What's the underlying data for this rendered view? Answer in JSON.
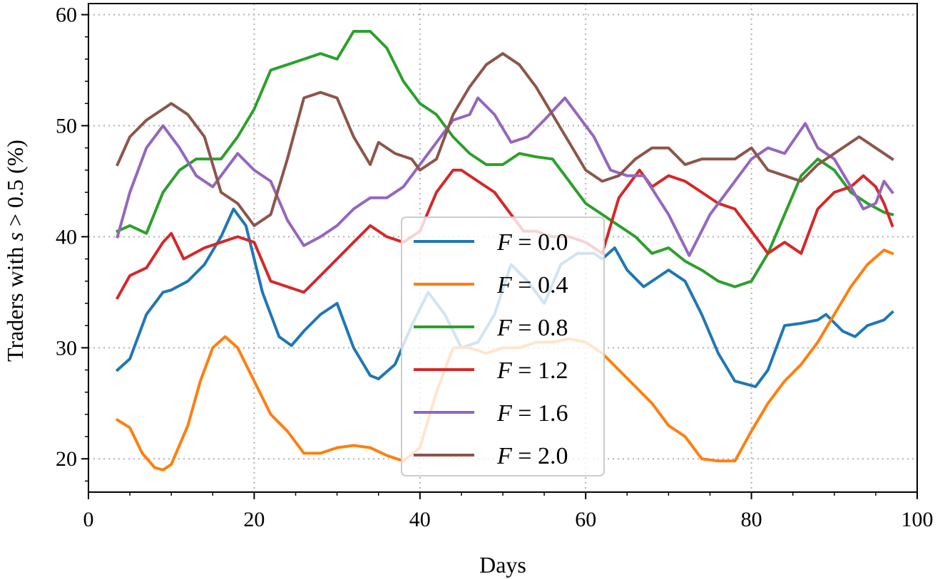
{
  "chart_data": {
    "type": "line",
    "xlabel": "Days",
    "ylabel": "Traders with s > 0.5 (%)",
    "ylabel_parts": {
      "prefix": "Traders with ",
      "var": "s",
      "suffix": " > 0.5 (%)"
    },
    "xlim": [
      0,
      100
    ],
    "ylim": [
      17,
      61
    ],
    "xticks": [
      0,
      20,
      40,
      60,
      80,
      100
    ],
    "yticks": [
      20,
      30,
      40,
      50,
      60
    ],
    "xtick_labels": [
      "0",
      "20",
      "40",
      "60",
      "80",
      "100"
    ],
    "ytick_labels": [
      "20",
      "30",
      "40",
      "50",
      "60"
    ],
    "grid": true,
    "legend_position": "center",
    "series": [
      {
        "name": "F = 0.0",
        "name_var": "F",
        "name_value": "= 0.0",
        "color": "#1f77b4",
        "x": [
          3.5,
          5,
          7,
          9,
          10,
          12,
          14,
          16,
          17.5,
          19,
          21,
          23,
          24.5,
          26,
          28,
          30,
          32,
          34,
          35,
          37,
          39,
          41,
          43,
          45,
          47,
          49,
          51,
          53,
          55,
          57,
          59,
          61,
          62,
          63.5,
          65,
          67,
          70,
          72,
          74,
          76,
          78,
          79,
          80.5,
          82,
          84,
          86,
          88,
          89,
          91,
          92.5,
          94,
          96,
          97
        ],
        "y": [
          28,
          29,
          33,
          35,
          35.2,
          36,
          37.5,
          40,
          42.5,
          41,
          35,
          31,
          30.2,
          31.5,
          33,
          34,
          30,
          27.5,
          27.2,
          28.5,
          32,
          35,
          33,
          30,
          30.5,
          33,
          37.5,
          36,
          34,
          37.5,
          38.5,
          38.5,
          38,
          39,
          37,
          35.5,
          37,
          36,
          33,
          29.5,
          27,
          26.8,
          26.5,
          28,
          32,
          32.2,
          32.5,
          33,
          31.5,
          31,
          32,
          32.5,
          33.2
        ]
      },
      {
        "name": "F = 0.4",
        "name_var": "F",
        "name_value": "= 0.4",
        "color": "#ff7f0e",
        "x": [
          3.5,
          5,
          6.5,
          8,
          9,
          10,
          12,
          13.5,
          15,
          16.5,
          18,
          20,
          22,
          24,
          26,
          28,
          30,
          32,
          34,
          36,
          38,
          40,
          42,
          44,
          46,
          48,
          50,
          52,
          54,
          56,
          58,
          60,
          62,
          64,
          66,
          68,
          70,
          72,
          74,
          76,
          78,
          80,
          82,
          84,
          86,
          88,
          90,
          92,
          94,
          96,
          97
        ],
        "y": [
          23.5,
          22.8,
          20.5,
          19.2,
          19,
          19.5,
          23,
          27,
          30,
          31,
          30,
          27,
          24,
          22.5,
          20.5,
          20.5,
          21,
          21.2,
          21,
          20.3,
          19.8,
          21,
          26,
          30,
          30,
          29.5,
          30,
          30,
          30.5,
          30.5,
          30.8,
          30.5,
          29.5,
          28,
          26.5,
          25,
          23,
          22,
          20,
          19.8,
          19.8,
          22.5,
          25,
          27,
          28.5,
          30.5,
          33,
          35.5,
          37.5,
          38.8,
          38.5
        ]
      },
      {
        "name": "F = 0.8",
        "name_var": "F",
        "name_value": "= 0.8",
        "color": "#2ca02c",
        "x": [
          3.5,
          5,
          7,
          9,
          11,
          13,
          16,
          18,
          20,
          22,
          24,
          26,
          28,
          30,
          32,
          34,
          36,
          38,
          40,
          42,
          44,
          46,
          48,
          50,
          52,
          54,
          56,
          58,
          60,
          62,
          64,
          66,
          68,
          70,
          72,
          74,
          76,
          78,
          80,
          82,
          84,
          86,
          88,
          90,
          92,
          94,
          96,
          97
        ],
        "y": [
          40.5,
          41,
          40.3,
          44,
          46,
          47,
          47,
          49,
          51.5,
          55,
          55.5,
          56,
          56.5,
          56,
          58.5,
          58.5,
          57,
          54,
          52,
          51,
          49,
          47.5,
          46.5,
          46.5,
          47.5,
          47.2,
          47,
          45,
          43,
          42,
          41,
          40,
          38.5,
          39,
          37.8,
          37,
          36,
          35.5,
          36,
          38.5,
          42,
          45.5,
          47,
          46,
          44,
          43,
          42.2,
          42
        ]
      },
      {
        "name": "F = 1.2",
        "name_var": "F",
        "name_value": "= 1.2",
        "color": "#d62728",
        "x": [
          3.5,
          5,
          7,
          9,
          10,
          11.5,
          14,
          16,
          18,
          20,
          22,
          24,
          26,
          28,
          30,
          32,
          34,
          36,
          38,
          40,
          42,
          44,
          45,
          47,
          49,
          51,
          52.5,
          54,
          56,
          58,
          60,
          62,
          64,
          66.5,
          68,
          70,
          72,
          74,
          76,
          78,
          80,
          82,
          84,
          86,
          88,
          90,
          92,
          93.5,
          95,
          96,
          97
        ],
        "y": [
          34.5,
          36.5,
          37.2,
          39.5,
          40.3,
          38,
          39,
          39.5,
          40,
          39.5,
          36,
          35.5,
          35,
          36.5,
          38,
          39.5,
          41,
          40,
          39.5,
          40.5,
          44,
          46,
          46,
          45,
          44,
          42,
          40.5,
          40.5,
          40,
          40,
          39.5,
          38.5,
          43.5,
          46,
          44.5,
          45.5,
          45,
          44,
          43,
          42.5,
          40.5,
          38.5,
          39.5,
          38.5,
          42.5,
          44,
          44.5,
          45.5,
          44.5,
          43,
          41
        ]
      },
      {
        "name": "F = 1.6",
        "name_var": "F",
        "name_value": "= 1.6",
        "color": "#9467bd",
        "x": [
          3.5,
          5,
          7,
          9,
          11,
          13,
          15,
          18,
          20,
          22,
          24,
          26,
          28,
          30,
          32,
          34,
          36,
          38,
          40,
          42,
          44,
          46,
          47,
          49,
          51,
          53,
          55,
          57.5,
          59,
          61,
          63,
          65,
          67,
          70,
          72.5,
          75,
          78,
          80,
          82,
          84,
          86.5,
          88,
          90,
          92,
          93.5,
          95,
          96,
          97
        ],
        "y": [
          40,
          44,
          48,
          50,
          48,
          45.5,
          44.5,
          47.5,
          46,
          45,
          41.5,
          39.2,
          40,
          41,
          42.5,
          43.5,
          43.5,
          44.5,
          46.5,
          48.5,
          50.5,
          51,
          52.5,
          51,
          48.5,
          49,
          50.5,
          52.5,
          51,
          49,
          46,
          45.5,
          45.5,
          42,
          38.3,
          42,
          45,
          47,
          48,
          47.5,
          50.2,
          48,
          47,
          44.5,
          42.5,
          43,
          45,
          44
        ]
      },
      {
        "name": "F = 2.0",
        "name_var": "F",
        "name_value": "= 2.0",
        "color": "#8c564b",
        "x": [
          3.5,
          5,
          7,
          9,
          10,
          12,
          14,
          16,
          18,
          20,
          22,
          24,
          26,
          28,
          30,
          32,
          34,
          35,
          37,
          39,
          40,
          42,
          44,
          46,
          48,
          50,
          52,
          54,
          56,
          58,
          60,
          62,
          64,
          66,
          68,
          70,
          72,
          74,
          76,
          78,
          80,
          82,
          84,
          86,
          88,
          90,
          92,
          93,
          95,
          97
        ],
        "y": [
          46.5,
          49,
          50.5,
          51.5,
          52,
          51,
          49,
          44,
          43,
          41,
          42,
          47,
          52.5,
          53,
          52.5,
          49,
          46.5,
          48.5,
          47.5,
          47,
          46,
          47,
          51,
          53.5,
          55.5,
          56.5,
          55.5,
          53.5,
          51,
          48.5,
          46,
          45,
          45.5,
          47,
          48,
          48,
          46.5,
          47,
          47,
          47,
          48,
          46,
          45.5,
          45,
          46.5,
          47.5,
          48.5,
          49,
          48,
          47
        ]
      }
    ]
  }
}
